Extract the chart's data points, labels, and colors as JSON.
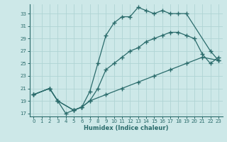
{
  "xlabel": "Humidex (Indice chaleur)",
  "bg_color": "#cde8e8",
  "line_color": "#2a6b6b",
  "grid_color": "#b0d4d4",
  "xlim": [
    -0.5,
    23.5
  ],
  "ylim": [
    16.5,
    34.5
  ],
  "yticks": [
    17,
    19,
    21,
    23,
    25,
    27,
    29,
    31,
    33
  ],
  "xticks": [
    0,
    1,
    2,
    3,
    4,
    5,
    6,
    7,
    8,
    9,
    10,
    11,
    12,
    13,
    14,
    15,
    16,
    17,
    18,
    19,
    20,
    21,
    22,
    23
  ],
  "line1_x": [
    0,
    2,
    3,
    4,
    5,
    6,
    7,
    8,
    9,
    10,
    11,
    12,
    13,
    14,
    15,
    16,
    17,
    18,
    19,
    22,
    23
  ],
  "line1_y": [
    20,
    21,
    19,
    17,
    17.5,
    18,
    20.5,
    25,
    29.5,
    31.5,
    32.5,
    32.5,
    34,
    33.5,
    33,
    33.5,
    33,
    33,
    33,
    27,
    25.5
  ],
  "line2_x": [
    0,
    2,
    3,
    5,
    6,
    7,
    8,
    9,
    10,
    11,
    12,
    13,
    14,
    15,
    16,
    17,
    18,
    19,
    20,
    21,
    22,
    23
  ],
  "line2_y": [
    20,
    21,
    19,
    17.5,
    18,
    19,
    21,
    24,
    25,
    26,
    27,
    27.5,
    28.5,
    29,
    29.5,
    30,
    30,
    29.5,
    29,
    26.5,
    25,
    26
  ],
  "line3_x": [
    0,
    2,
    3,
    5,
    6,
    7,
    9,
    11,
    13,
    15,
    17,
    19,
    21,
    23
  ],
  "line3_y": [
    20,
    21,
    19,
    17.5,
    18,
    19,
    20,
    21,
    22,
    23,
    24,
    25,
    26,
    25.5
  ]
}
